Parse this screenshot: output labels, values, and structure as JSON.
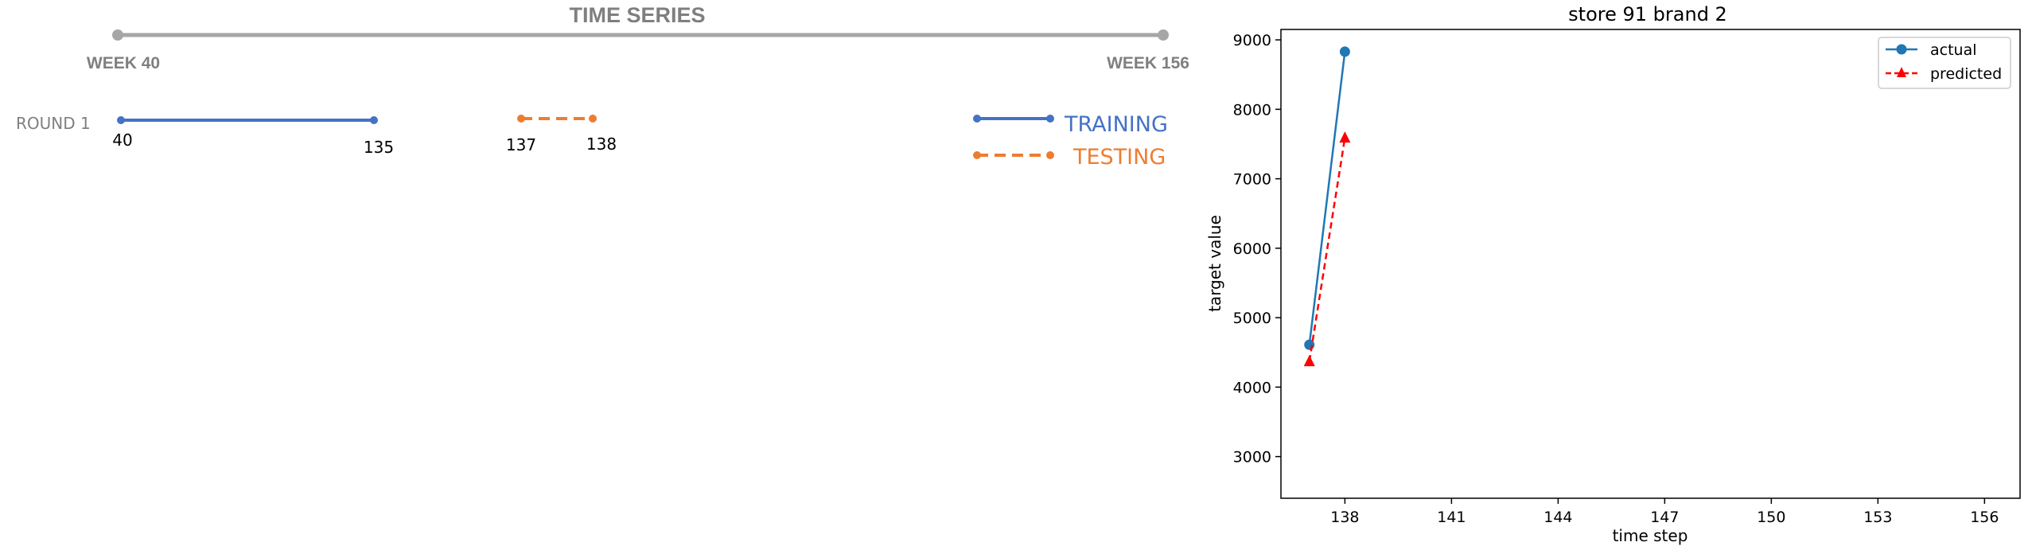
{
  "timeline": {
    "title": "TIME SERIES",
    "start_label": "WEEK 40",
    "end_label": "WEEK 156",
    "start_week": 40,
    "end_week": 156,
    "round_label": "ROUND 1",
    "training": {
      "start": 40,
      "end": 135,
      "start_label": "40",
      "end_label": "135"
    },
    "testing": {
      "start": 137,
      "end": 138,
      "start_label": "137",
      "end_label": "138"
    },
    "legend": {
      "training": "TRAINING",
      "testing": "TESTING"
    },
    "colors": {
      "axis": "#a6a6a6",
      "training": "#4472c4",
      "testing": "#ed7d31",
      "text": "#7f7f7f"
    }
  },
  "chart_data": {
    "type": "line",
    "title": "store 91 brand 2",
    "xlabel": "time step",
    "ylabel": "target value",
    "xlim": [
      136.2,
      157.0
    ],
    "ylim": [
      2400,
      9150
    ],
    "xticks": [
      138,
      141,
      144,
      147,
      150,
      153,
      156
    ],
    "yticks": [
      3000,
      4000,
      5000,
      6000,
      7000,
      8000,
      9000
    ],
    "x": [
      137,
      138
    ],
    "series": [
      {
        "name": "actual",
        "values": [
          4610,
          8830
        ],
        "color": "#1f77b4",
        "marker": "circle",
        "linestyle": "solid"
      },
      {
        "name": "predicted",
        "values": [
          4370,
          7590
        ],
        "color": "#ff0000",
        "marker": "triangle",
        "linestyle": "dashed"
      }
    ],
    "legend_position": "top-right",
    "grid": false
  }
}
